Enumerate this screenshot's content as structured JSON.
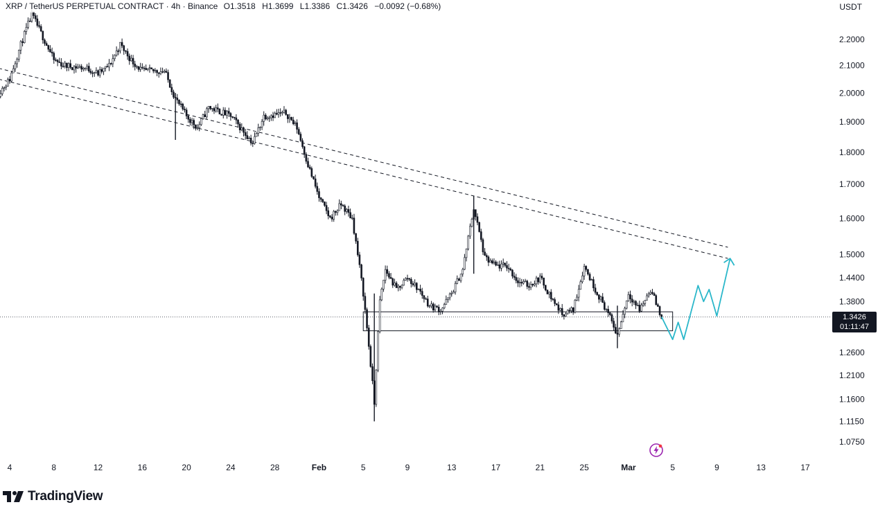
{
  "header": {
    "symbol": "XRP / TetherUS PERPETUAL CONTRACT · 4h · Binance",
    "open": "O1.3518",
    "high": "H1.3699",
    "low": "L1.3386",
    "close": "C1.3426",
    "change": "−0.0092 (−0.68%)"
  },
  "currency": "USDT",
  "branding": {
    "name": "TradingView"
  },
  "price_tag": {
    "price": "1.3426",
    "countdown": "01:11:47"
  },
  "colors": {
    "candle": "#131722",
    "projection": "#2ab7ca",
    "text": "#131722",
    "tag_bg": "#131722"
  },
  "icons": {
    "flash": "flash-icon",
    "logo": "tradingview-logo-icon"
  },
  "chart_data": {
    "type": "candlestick",
    "interval": "4h",
    "price_scale": "log",
    "ylim": [
      1.05,
      2.3
    ],
    "y_ticks": [
      "2.2000",
      "2.1000",
      "2.0000",
      "1.9000",
      "1.8000",
      "1.7000",
      "1.6000",
      "1.5000",
      "1.4400",
      "1.3800",
      "1.3426",
      "1.2600",
      "1.2100",
      "1.1600",
      "1.1150",
      "1.0750"
    ],
    "x_ticks": [
      "4",
      "8",
      "12",
      "16",
      "20",
      "24",
      "28",
      "Feb",
      "5",
      "9",
      "13",
      "17",
      "21",
      "25",
      "Mar",
      "5",
      "9",
      "13",
      "17"
    ],
    "x_tick_dates": [
      "Jan 4",
      "Jan 8",
      "Jan 12",
      "Jan 16",
      "Jan 20",
      "Jan 24",
      "Jan 28",
      "Feb 1",
      "Feb 5",
      "Feb 9",
      "Feb 13",
      "Feb 17",
      "Feb 21",
      "Feb 25",
      "Mar 1",
      "Mar 5",
      "Mar 9",
      "Mar 13",
      "Mar 17"
    ],
    "last_price": 1.3426,
    "price_path": [
      {
        "date": "Jan 3",
        "price": 2.0
      },
      {
        "date": "Jan 4",
        "price": 2.05
      },
      {
        "date": "Jan 5",
        "price": 2.18
      },
      {
        "date": "Jan 6",
        "price": 2.3
      },
      {
        "date": "Jan 7",
        "price": 2.21
      },
      {
        "date": "Jan 8",
        "price": 2.12
      },
      {
        "date": "Jan 9",
        "price": 2.1
      },
      {
        "date": "Jan 11",
        "price": 2.09
      },
      {
        "date": "Jan 12",
        "price": 2.07
      },
      {
        "date": "Jan 13",
        "price": 2.1
      },
      {
        "date": "Jan 14",
        "price": 2.18
      },
      {
        "date": "Jan 15",
        "price": 2.12
      },
      {
        "date": "Jan 16",
        "price": 2.08
      },
      {
        "date": "Jan 18",
        "price": 2.08
      },
      {
        "date": "Jan 19",
        "price": 1.98
      },
      {
        "date": "Jan 20",
        "price": 1.92
      },
      {
        "date": "Jan 21",
        "price": 1.88
      },
      {
        "date": "Jan 22",
        "price": 1.95
      },
      {
        "date": "Jan 24",
        "price": 1.92
      },
      {
        "date": "Jan 26",
        "price": 1.83
      },
      {
        "date": "Jan 27",
        "price": 1.92
      },
      {
        "date": "Jan 29",
        "price": 1.93
      },
      {
        "date": "Jan 30",
        "price": 1.88
      },
      {
        "date": "Jan 31",
        "price": 1.76
      },
      {
        "date": "Feb 1",
        "price": 1.66
      },
      {
        "date": "Feb 2",
        "price": 1.6
      },
      {
        "date": "Feb 3",
        "price": 1.64
      },
      {
        "date": "Feb 4",
        "price": 1.6
      },
      {
        "date": "Feb 5",
        "price": 1.4
      },
      {
        "date": "Feb 6",
        "price": 1.15
      },
      {
        "date": "Feb 6.5",
        "price": 1.38
      },
      {
        "date": "Feb 7",
        "price": 1.46
      },
      {
        "date": "Feb 8",
        "price": 1.41
      },
      {
        "date": "Feb 9",
        "price": 1.44
      },
      {
        "date": "Feb 10",
        "price": 1.41
      },
      {
        "date": "Feb 11",
        "price": 1.37
      },
      {
        "date": "Feb 12",
        "price": 1.36
      },
      {
        "date": "Feb 13",
        "price": 1.4
      },
      {
        "date": "Feb 14",
        "price": 1.46
      },
      {
        "date": "Feb 15",
        "price": 1.63
      },
      {
        "date": "Feb 16",
        "price": 1.49
      },
      {
        "date": "Feb 17",
        "price": 1.47
      },
      {
        "date": "Feb 18",
        "price": 1.47
      },
      {
        "date": "Feb 19",
        "price": 1.43
      },
      {
        "date": "Feb 20",
        "price": 1.42
      },
      {
        "date": "Feb 21",
        "price": 1.44
      },
      {
        "date": "Feb 22",
        "price": 1.39
      },
      {
        "date": "Feb 23",
        "price": 1.35
      },
      {
        "date": "Feb 24",
        "price": 1.36
      },
      {
        "date": "Feb 25",
        "price": 1.47
      },
      {
        "date": "Feb 26",
        "price": 1.41
      },
      {
        "date": "Feb 27",
        "price": 1.36
      },
      {
        "date": "Feb 28",
        "price": 1.3
      },
      {
        "date": "Mar 1",
        "price": 1.4
      },
      {
        "date": "Mar 2",
        "price": 1.36
      },
      {
        "date": "Mar 3",
        "price": 1.41
      },
      {
        "date": "Mar 4",
        "price": 1.3426
      }
    ],
    "trendlines": [
      {
        "style": "dashed",
        "from": {
          "date": "Jan 3",
          "price": 2.09
        },
        "to": {
          "date": "Mar 10",
          "price": 1.52
        }
      },
      {
        "style": "dashed",
        "from": {
          "date": "Jan 3",
          "price": 2.05
        },
        "to": {
          "date": "Mar 10",
          "price": 1.49
        }
      }
    ],
    "support_zone": {
      "from_date": "Feb 5",
      "to_date": "Mar 5",
      "low": 1.31,
      "high": 1.355
    },
    "projection": [
      {
        "date": "Mar 4",
        "price": 1.3426
      },
      {
        "date": "Mar 5",
        "price": 1.29
      },
      {
        "date": "Mar 5.5",
        "price": 1.33
      },
      {
        "date": "Mar 6",
        "price": 1.29
      },
      {
        "date": "Mar 7.3",
        "price": 1.42
      },
      {
        "date": "Mar 7.8",
        "price": 1.38
      },
      {
        "date": "Mar 8.3",
        "price": 1.41
      },
      {
        "date": "Mar 9",
        "price": 1.345
      },
      {
        "date": "Mar 10.2",
        "price": 1.49
      }
    ]
  }
}
